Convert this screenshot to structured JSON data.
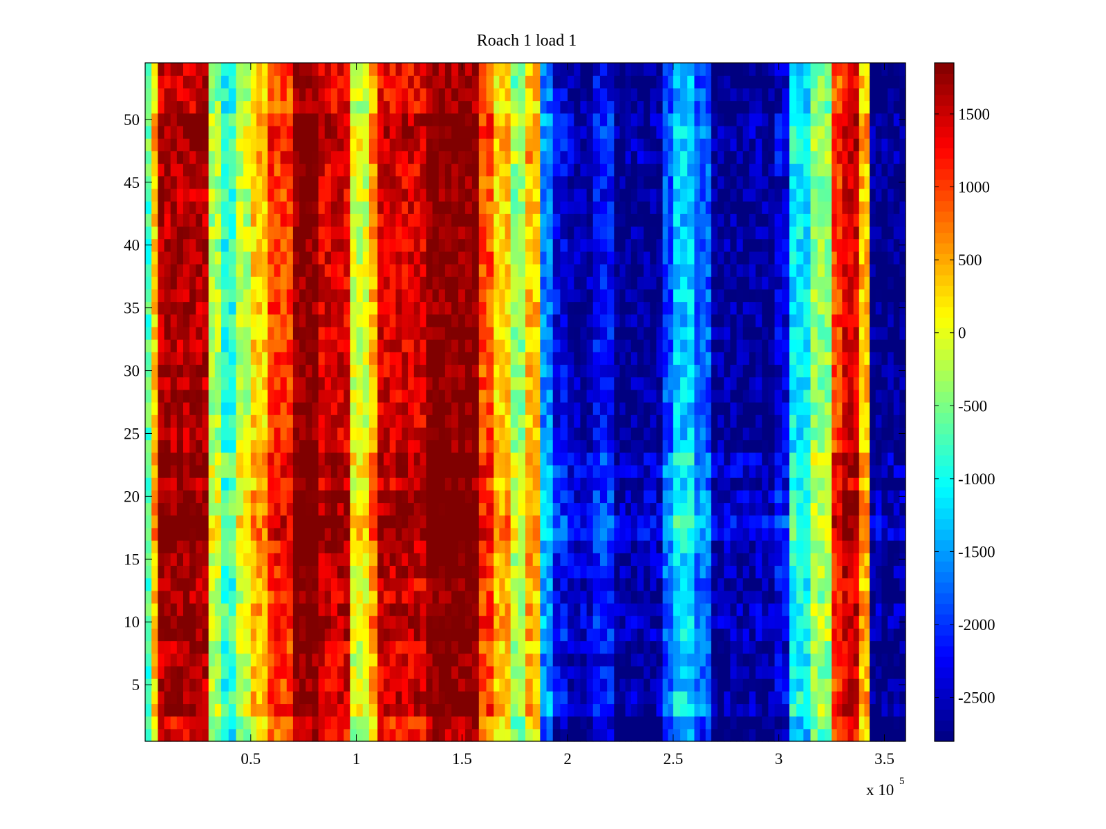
{
  "chart_data": {
    "type": "heatmap",
    "title": "Roach 1 load 1",
    "xlabel": "",
    "ylabel": "",
    "x_exponent_label": "x 10",
    "x_exponent_power": "5",
    "xlim": [
      0,
      3.6
    ],
    "ylim": [
      0.5,
      54.5
    ],
    "x_ticks": [
      0.5,
      1,
      1.5,
      2,
      2.5,
      3,
      3.5
    ],
    "x_tick_labels": [
      "0.5",
      "1",
      "1.5",
      "2",
      "2.5",
      "3",
      "3.5"
    ],
    "y_ticks": [
      5,
      10,
      15,
      20,
      25,
      30,
      35,
      40,
      45,
      50
    ],
    "y_tick_labels": [
      "5",
      "10",
      "15",
      "20",
      "25",
      "30",
      "35",
      "40",
      "45",
      "50"
    ],
    "rows": 54,
    "colormap": "jet",
    "clim": [
      -2800,
      1850
    ],
    "colorbar_ticks": [
      1500,
      1000,
      500,
      0,
      -500,
      -1000,
      -1500,
      -2000,
      -2500
    ],
    "colorbar_tick_labels": [
      "1500",
      "1000",
      "500",
      "0",
      "-500",
      "-1000",
      "-1500",
      "-2000",
      "-2500"
    ],
    "x_edges": [
      0,
      0.03,
      0.06,
      0.3,
      0.36,
      0.43,
      0.5,
      0.58,
      0.7,
      0.82,
      0.97,
      1.06,
      1.1,
      1.33,
      1.45,
      1.58,
      1.65,
      1.73,
      1.8,
      1.87,
      1.93,
      2.0,
      2.12,
      2.22,
      2.3,
      2.45,
      2.5,
      2.6,
      2.68,
      2.98,
      3.05,
      3.15,
      3.25,
      3.3,
      3.38,
      3.43,
      3.6
    ],
    "profile_values": [
      -700,
      300,
      1600,
      -300,
      -900,
      -200,
      300,
      1000,
      1850,
      1400,
      -100,
      500,
      1400,
      1850,
      1850,
      900,
      300,
      -400,
      400,
      -1600,
      -2300,
      -2600,
      -2200,
      -2800,
      -2700,
      -1900,
      -1300,
      -1800,
      -2700,
      -2400,
      -1100,
      -400,
      1000,
      1400,
      400,
      -2800
    ],
    "row_effects": [
      {
        "rows": [
          1,
          2
        ],
        "delta": -250
      },
      {
        "rows": [
          3,
          4
        ],
        "delta": 150
      },
      {
        "rows": [
          9,
          11
        ],
        "delta": 200
      },
      {
        "rows": [
          14,
          16
        ],
        "delta": 180
      },
      {
        "rows": [
          17,
          18
        ],
        "delta": 450
      },
      {
        "rows": [
          19,
          20
        ],
        "delta": 250
      },
      {
        "rows": [
          22,
          23
        ],
        "delta": 280
      },
      {
        "rows": [
          47,
          50
        ],
        "delta": 150
      },
      {
        "rows": [
          51,
          54
        ],
        "delta": -100
      }
    ],
    "grid": false,
    "colorbar_position": "right"
  }
}
